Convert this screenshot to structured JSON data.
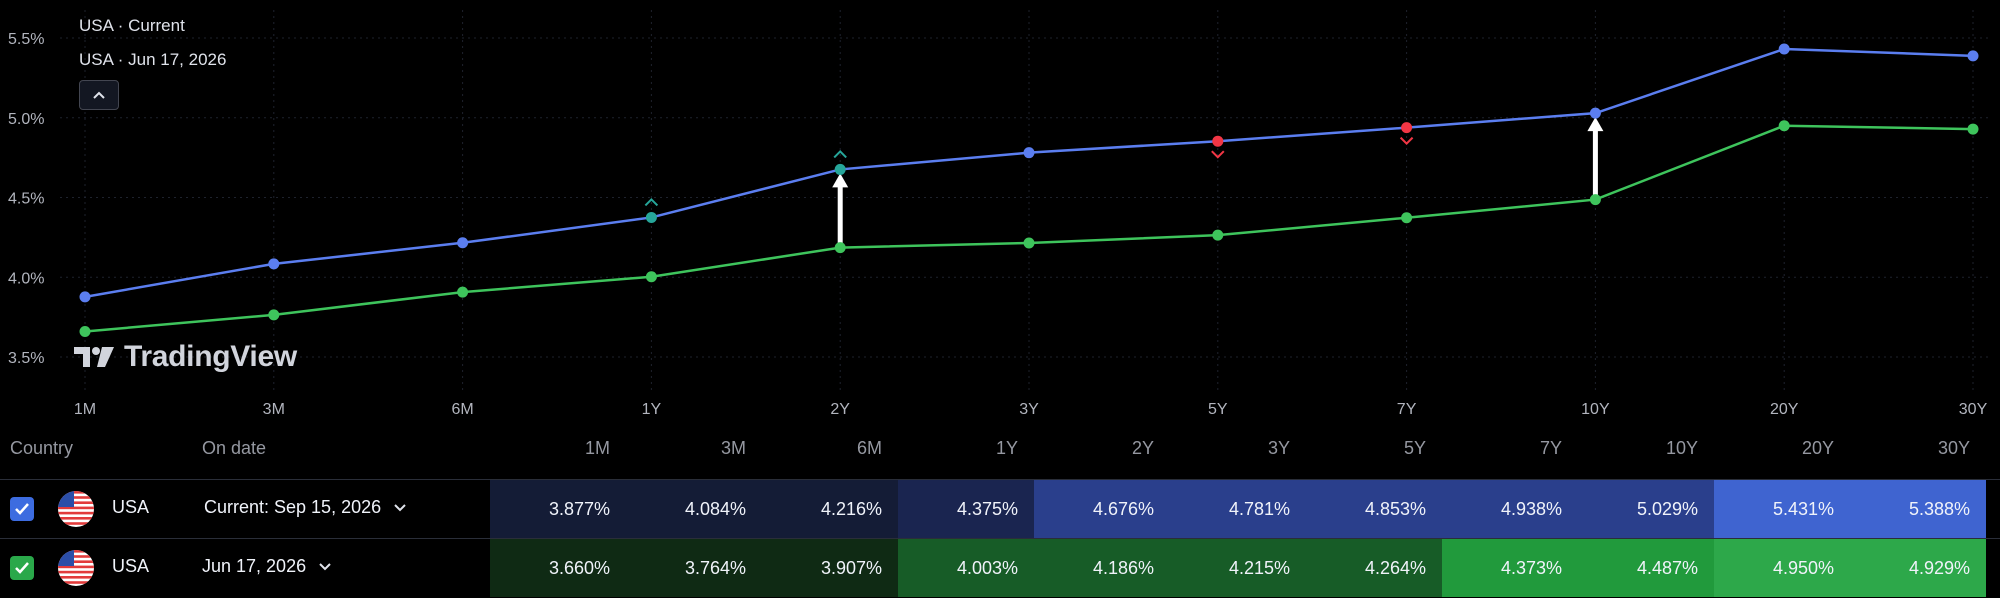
{
  "legend": {
    "series1": "USA · Current",
    "series2": "USA · Jun 17, 2026"
  },
  "brand": {
    "logo_text": "TradingView"
  },
  "chart_data": {
    "type": "line",
    "categories": [
      "1M",
      "3M",
      "6M",
      "1Y",
      "2Y",
      "3Y",
      "5Y",
      "7Y",
      "10Y",
      "20Y",
      "30Y"
    ],
    "yticks": [
      "3.5%",
      "4.0%",
      "4.5%",
      "5.0%",
      "5.5%"
    ],
    "ylim": [
      3.3,
      5.75
    ],
    "series": [
      {
        "name": "USA · Current",
        "color": "#5b7ef0",
        "values": [
          3.877,
          4.084,
          4.216,
          4.375,
          4.676,
          4.781,
          4.853,
          4.938,
          5.029,
          5.431,
          5.388
        ]
      },
      {
        "name": "USA · Jun 17, 2026",
        "color": "#3ec45c",
        "values": [
          3.66,
          3.764,
          3.907,
          4.003,
          4.186,
          4.215,
          4.264,
          4.373,
          4.487,
          4.95,
          4.929
        ]
      }
    ],
    "markers": [
      {
        "category": "1Y",
        "type": "up",
        "color": "#26a69a"
      },
      {
        "category": "2Y",
        "type": "up",
        "color": "#26a69a"
      },
      {
        "category": "5Y",
        "type": "down",
        "color": "#f23645"
      },
      {
        "category": "7Y",
        "type": "down",
        "color": "#f23645"
      }
    ],
    "arrows": [
      "2Y",
      "10Y"
    ],
    "grid": true
  },
  "table": {
    "headers": {
      "country": "Country",
      "on_date": "On date",
      "terms": [
        "1M",
        "3M",
        "6M",
        "1Y",
        "2Y",
        "3Y",
        "5Y",
        "7Y",
        "10Y",
        "20Y",
        "30Y"
      ]
    },
    "rows": [
      {
        "checked": true,
        "checkbox_color": "#3d6ce0",
        "country": "USA",
        "date_label": "Current: Sep 15, 2026",
        "values": [
          "3.877%",
          "4.084%",
          "4.216%",
          "4.375%",
          "4.676%",
          "4.781%",
          "4.853%",
          "4.938%",
          "5.029%",
          "5.431%",
          "5.388%"
        ],
        "cell_colors": [
          "#141c36",
          "#141c36",
          "#141c36",
          "#1a2550",
          "#2a3f8c",
          "#2a3f8c",
          "#2a3f8c",
          "#2a3f8c",
          "#2a3f8c",
          "#3f64d0",
          "#3f64d0"
        ]
      },
      {
        "checked": true,
        "checkbox_color": "#2aa84a",
        "country": "USA",
        "date_label": "Jun 17, 2026",
        "values": [
          "3.660%",
          "3.764%",
          "3.907%",
          "4.003%",
          "4.186%",
          "4.215%",
          "4.264%",
          "4.373%",
          "4.487%",
          "4.950%",
          "4.929%"
        ],
        "cell_colors": [
          "#0f2a14",
          "#0f2a14",
          "#0f2a14",
          "#175c27",
          "#175c27",
          "#175c27",
          "#175c27",
          "#219a3c",
          "#219a3c",
          "#2da84a",
          "#2da84a"
        ]
      }
    ]
  }
}
